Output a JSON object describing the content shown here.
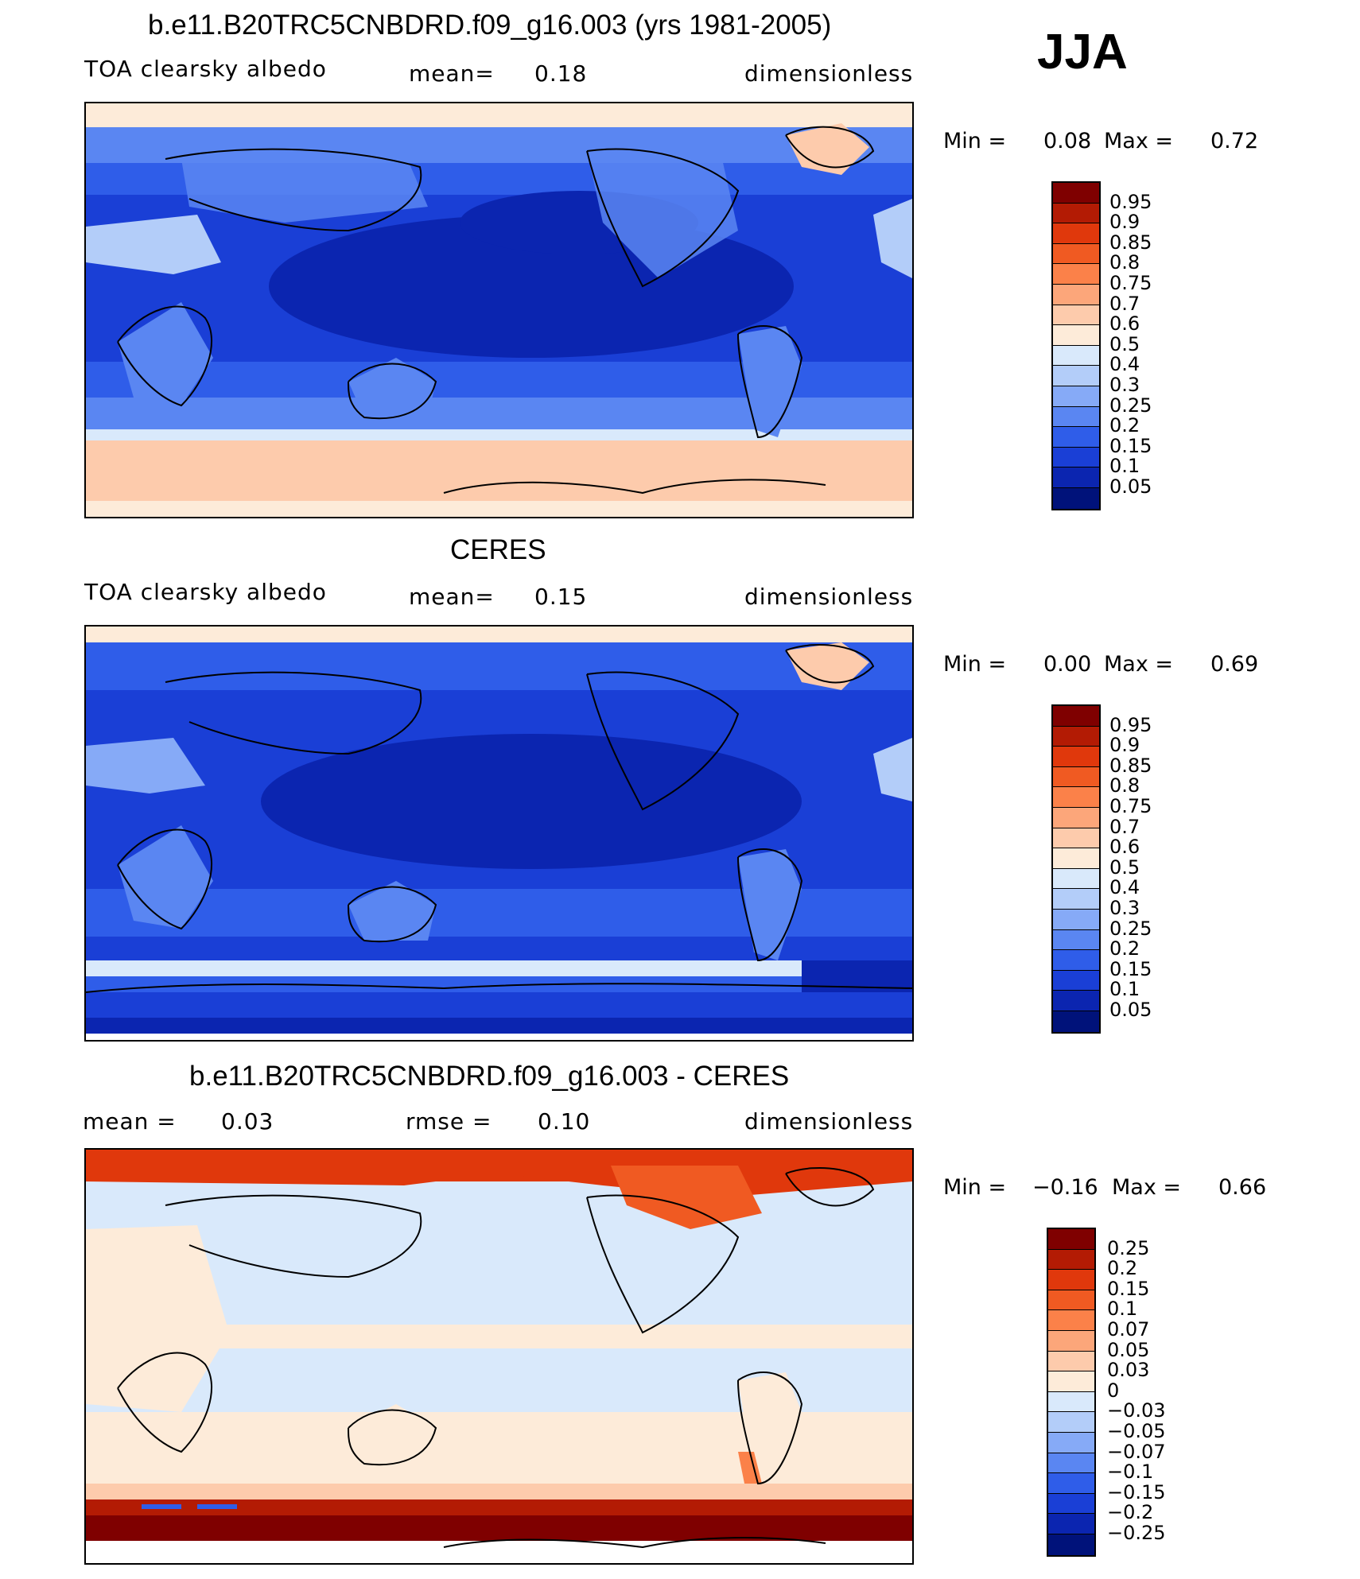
{
  "season": "JJA",
  "panels": [
    {
      "title": "b.e11.B20TRC5CNBDRD.f09_g16.003 (yrs 1981-2005)",
      "left_label": "TOA clearsky albedo",
      "center_label": "mean=",
      "center_value": "0.18",
      "right_label": "dimensionless",
      "min_label": "Min =",
      "min_value": "0.08",
      "max_label": "Max =",
      "max_value": "0.72",
      "colorbar": {
        "labels": [
          "0.95",
          "0.9",
          "0.85",
          "0.8",
          "0.75",
          "0.7",
          "0.6",
          "0.5",
          "0.4",
          "0.3",
          "0.25",
          "0.2",
          "0.15",
          "0.1",
          "0.05"
        ],
        "colors": [
          "#7f0000",
          "#b31b04",
          "#e0380c",
          "#f05a22",
          "#fb8149",
          "#fca67a",
          "#fdcbac",
          "#fdebd9",
          "#d9e9fb",
          "#b3cdf9",
          "#86aaf7",
          "#5a86f2",
          "#2f5de9",
          "#1a3fd6",
          "#0b25b0",
          "#00127a"
        ]
      }
    },
    {
      "title": "CERES",
      "left_label": "TOA clearsky albedo",
      "center_label": "mean=",
      "center_value": "0.15",
      "right_label": "dimensionless",
      "min_label": "Min =",
      "min_value": "0.00",
      "max_label": "Max =",
      "max_value": "0.69",
      "colorbar": {
        "labels": [
          "0.95",
          "0.9",
          "0.85",
          "0.8",
          "0.75",
          "0.7",
          "0.6",
          "0.5",
          "0.4",
          "0.3",
          "0.25",
          "0.2",
          "0.15",
          "0.1",
          "0.05"
        ],
        "colors": [
          "#7f0000",
          "#b31b04",
          "#e0380c",
          "#f05a22",
          "#fb8149",
          "#fca67a",
          "#fdcbac",
          "#fdebd9",
          "#d9e9fb",
          "#b3cdf9",
          "#86aaf7",
          "#5a86f2",
          "#2f5de9",
          "#1a3fd6",
          "#0b25b0",
          "#00127a"
        ]
      }
    },
    {
      "title": "b.e11.B20TRC5CNBDRD.f09_g16.003 - CERES",
      "left_label": "mean =",
      "left_value": "0.03",
      "center_label": "rmse =",
      "center_value": "0.10",
      "right_label": "dimensionless",
      "min_label": "Min =",
      "min_value": "−0.16",
      "max_label": "Max =",
      "max_value": "0.66",
      "colorbar": {
        "labels": [
          "0.25",
          "0.2",
          "0.15",
          "0.1",
          "0.07",
          "0.05",
          "0.03",
          "0",
          "−0.03",
          "−0.05",
          "−0.07",
          "−0.1",
          "−0.15",
          "−0.2",
          "−0.25"
        ],
        "colors": [
          "#7f0000",
          "#b31b04",
          "#e0380c",
          "#f05a22",
          "#fb8149",
          "#fca67a",
          "#fdcbac",
          "#fdebd9",
          "#d9e9fb",
          "#b3cdf9",
          "#86aaf7",
          "#5a86f2",
          "#2f5de9",
          "#1a3fd6",
          "#0b25b0",
          "#00127a"
        ]
      }
    }
  ]
}
